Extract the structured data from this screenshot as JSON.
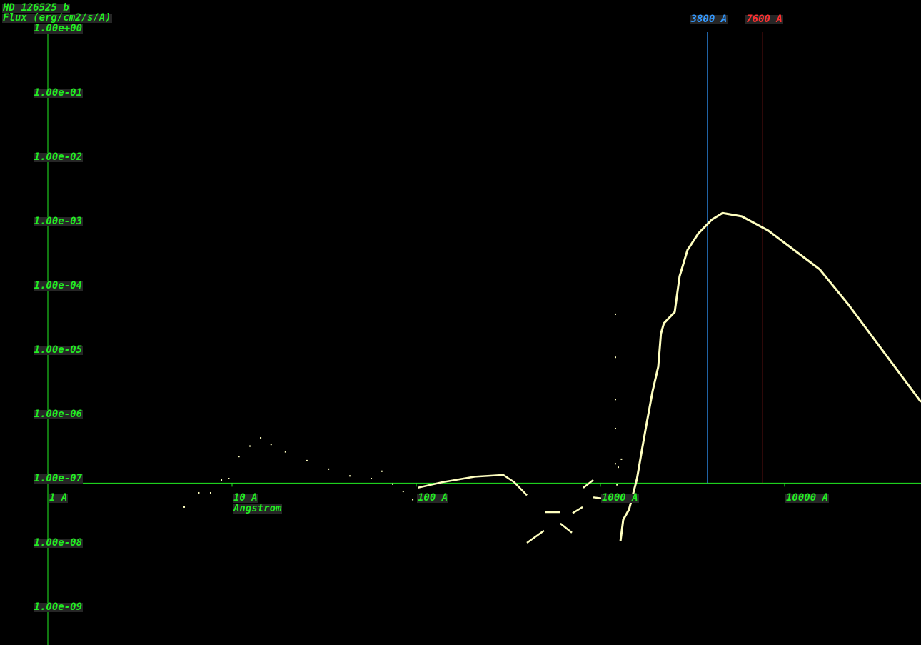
{
  "chart_data": {
    "type": "scatter",
    "title": "HD 126525 b",
    "ylabel": "Flux (erg/cm2/s/A)",
    "xlabel": "Angstrom",
    "x_scale": "log",
    "y_scale": "log",
    "xlim": [
      1,
      55000
    ],
    "ylim": [
      1e-09,
      1
    ],
    "y_ticks": [
      "1.00e+00",
      "1.00e-01",
      "1.00e-02",
      "1.00e-03",
      "1.00e-04",
      "1.00e-05",
      "1.00e-06",
      "1.00e-07",
      "1.00e-08",
      "1.00e-09"
    ],
    "y_tick_values": [
      1,
      0.1,
      0.01,
      0.001,
      0.0001,
      1e-05,
      1e-06,
      1e-07,
      1e-08,
      1e-09
    ],
    "x_ticks": [
      "1 A",
      "10 A",
      "100 A",
      "1000 A",
      "10000 A"
    ],
    "x_tick_values": [
      1,
      10,
      100,
      1000,
      10000
    ],
    "axis_crossing_flux": 8.5e-08,
    "markers": [
      {
        "label": "3800 A",
        "wavelength": 3800,
        "color": "#3399ff"
      },
      {
        "label": "7600 A",
        "wavelength": 7600,
        "color": "#ff3030"
      }
    ],
    "colors": {
      "axis": "#22ee22",
      "text": "#22ee22",
      "spectrum": "#ffffc0",
      "label_bg": "#262626"
    },
    "main_curve": [
      [
        1285,
        1.07e-08
      ],
      [
        1330,
        2.3e-08
      ],
      [
        1430,
        3.3e-08
      ],
      [
        1520,
        6.5e-08
      ],
      [
        1580,
        1e-07
      ],
      [
        1680,
        2.8e-07
      ],
      [
        1770,
        6.5e-07
      ],
      [
        1920,
        2.3e-06
      ],
      [
        2060,
        5.5e-06
      ],
      [
        2130,
        1.8e-05
      ],
      [
        2210,
        2.6e-05
      ],
      [
        2530,
        3.9e-05
      ],
      [
        2690,
        0.00014
      ],
      [
        2970,
        0.00036
      ],
      [
        3400,
        0.00065
      ],
      [
        4030,
        0.00107
      ],
      [
        4600,
        0.00135
      ],
      [
        5850,
        0.0012
      ],
      [
        8150,
        0.00072
      ],
      [
        15500,
        0.00018
      ],
      [
        22300,
        5e-05
      ],
      [
        55000,
        1.55e-06
      ]
    ],
    "segments": [
      [
        [
          102,
          7.2e-08
        ],
        [
          139,
          8.8e-08
        ],
        [
          208,
          1.07e-07
        ],
        [
          297,
          1.14e-07
        ],
        [
          340,
          8.8e-08
        ],
        [
          399,
          5.5e-08
        ]
      ],
      [
        [
          399,
          1e-08
        ],
        [
          494,
          1.55e-08
        ]
      ],
      [
        [
          503,
          3e-08
        ],
        [
          606,
          3e-08
        ]
      ],
      [
        [
          606,
          2e-08
        ],
        [
          700,
          1.44e-08
        ]
      ],
      [
        [
          706,
          2.9e-08
        ],
        [
          800,
          3.6e-08
        ]
      ],
      [
        [
          807,
          7.2e-08
        ],
        [
          915,
          9.5e-08
        ]
      ],
      [
        [
          915,
          5.1e-08
        ],
        [
          1094,
          4.8e-08
        ]
      ]
    ],
    "points": [
      [
        5.5,
        3.6e-08
      ],
      [
        6.6,
        6e-08
      ],
      [
        7.65,
        6e-08
      ],
      [
        8.75,
        9.5e-08
      ],
      [
        9.6,
        1e-07
      ],
      [
        10.9,
        2.2e-07
      ],
      [
        12.5,
        3.2e-07
      ],
      [
        14.3,
        4.3e-07
      ],
      [
        16.3,
        3.4e-07
      ],
      [
        19.5,
        2.6e-07
      ],
      [
        25.5,
        1.9e-07
      ],
      [
        33.4,
        1.4e-07
      ],
      [
        43.6,
        1.1e-07
      ],
      [
        57,
        1e-07
      ],
      [
        65,
        1.3e-07
      ],
      [
        74.5,
        8.2e-08
      ],
      [
        85,
        6.3e-08
      ],
      [
        95.7,
        4.7e-08
      ],
      [
        1206,
        3.6e-05
      ],
      [
        1206,
        7.7e-06
      ],
      [
        1206,
        1.7e-06
      ],
      [
        1206,
        6e-07
      ],
      [
        1206,
        1.7e-07
      ],
      [
        1230,
        8e-08
      ],
      [
        1250,
        1.5e-07
      ],
      [
        1300,
        2e-07
      ]
    ]
  }
}
